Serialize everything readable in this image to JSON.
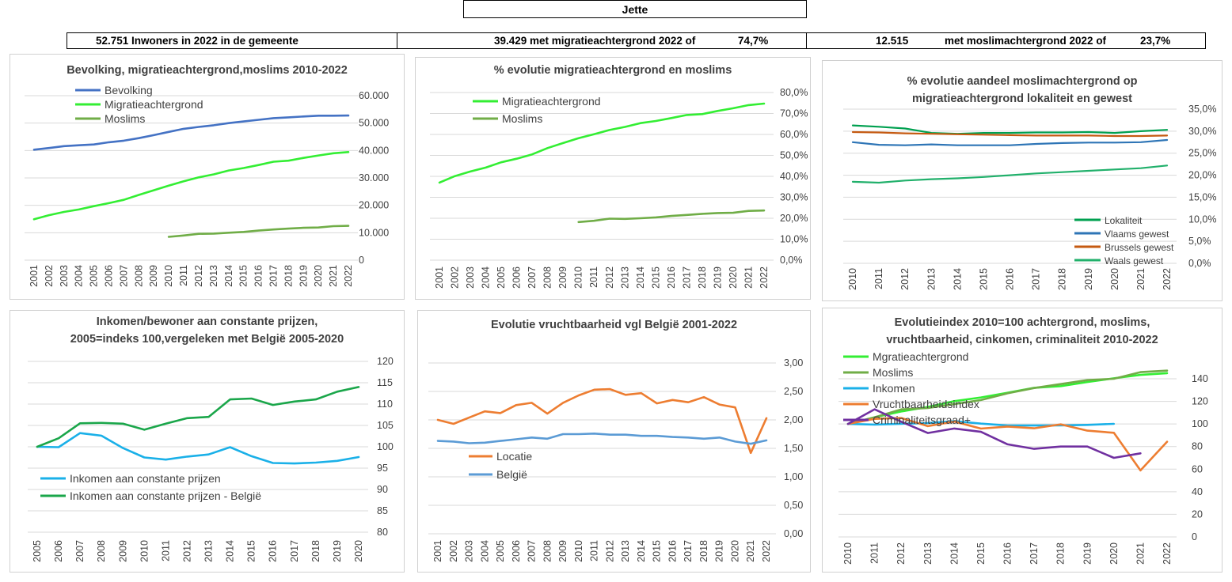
{
  "header": {
    "title": "Jette",
    "box1": "52.751 Inwoners in 2022 in de gemeente",
    "box2a": "39.429 met migratieachtergrond 2022 of",
    "box2b": "74,7%",
    "box3a": "12.515",
    "box3b": "met moslimachtergrond 2022 of",
    "box3c": "23,7%"
  },
  "chart_data": [
    {
      "type": "line",
      "title": "Bevolking, migratieachtergrond,moslims  2010-2022",
      "x": [
        "2001",
        "2002",
        "2003",
        "2004",
        "2005",
        "2006",
        "2007",
        "2008",
        "2009",
        "2010",
        "2011",
        "2012",
        "2013",
        "2014",
        "2015",
        "2016",
        "2017",
        "2018",
        "2019",
        "2020",
        "2021",
        "2022"
      ],
      "ylim": [
        0,
        60000
      ],
      "yticks": [
        "0",
        "10.000",
        "20.000",
        "30.000",
        "40.000",
        "50.000",
        "60.000"
      ],
      "legend_position": "top-left",
      "series": [
        {
          "name": "Bevolking",
          "color": "#4472c4",
          "values": [
            40300,
            40900,
            41600,
            41900,
            42200,
            43000,
            43600,
            44500,
            45600,
            46800,
            47900,
            48600,
            49200,
            50000,
            50600,
            51200,
            51800,
            52100,
            52400,
            52700,
            52700,
            52751
          ]
        },
        {
          "name": "Migratieachtergrond",
          "color": "#33ee33",
          "values": [
            14900,
            16400,
            17600,
            18500,
            19700,
            20800,
            22000,
            23800,
            25500,
            27200,
            28800,
            30200,
            31300,
            32700,
            33600,
            34700,
            35900,
            36300,
            37300,
            38200,
            39000,
            39429
          ]
        },
        {
          "name": "Moslims",
          "color": "#70ad47",
          "values": [
            null,
            null,
            null,
            null,
            null,
            null,
            null,
            null,
            null,
            8500,
            9000,
            9600,
            9700,
            10000,
            10300,
            10800,
            11200,
            11500,
            11800,
            11900,
            12400,
            12515
          ]
        }
      ]
    },
    {
      "type": "line",
      "title": "% evolutie migratieachtergrond  en moslims",
      "x": [
        "2001",
        "2002",
        "2003",
        "2004",
        "2005",
        "2006",
        "2007",
        "2008",
        "2009",
        "2010",
        "2011",
        "2012",
        "2013",
        "2014",
        "2015",
        "2016",
        "2017",
        "2018",
        "2019",
        "2020",
        "2021",
        "2022"
      ],
      "ylim": [
        0,
        80
      ],
      "yticks": [
        "0,0%",
        "10,0%",
        "20,0%",
        "30,0%",
        "40,0%",
        "50,0%",
        "60,0%",
        "70,0%",
        "80,0%"
      ],
      "legend_position": "top-left",
      "series": [
        {
          "name": "Migratieachtergrond",
          "color": "#33ee33",
          "values": [
            37.0,
            40.1,
            42.3,
            44.2,
            46.7,
            48.4,
            50.5,
            53.5,
            55.9,
            58.2,
            60.1,
            62.1,
            63.6,
            65.4,
            66.4,
            67.8,
            69.3,
            69.7,
            71.2,
            72.5,
            74.0,
            74.7
          ]
        },
        {
          "name": "Moslims",
          "color": "#70ad47",
          "values": [
            null,
            null,
            null,
            null,
            null,
            null,
            null,
            null,
            null,
            18.2,
            18.8,
            19.8,
            19.7,
            20.0,
            20.4,
            21.1,
            21.6,
            22.1,
            22.5,
            22.6,
            23.5,
            23.7
          ]
        }
      ]
    },
    {
      "type": "line",
      "title": "% evolutie aandeel moslimachtergrond op migratieachtergrond lokaliteit en gewest",
      "title_lines": [
        "% evolutie aandeel moslimachtergrond op",
        "migratieachtergrond lokaliteit en gewest"
      ],
      "x": [
        "2010",
        "2011",
        "2012",
        "2013",
        "2014",
        "2015",
        "2016",
        "2017",
        "2018",
        "2019",
        "2020",
        "2021",
        "2022"
      ],
      "ylim": [
        0,
        35
      ],
      "yticks": [
        "0,0%",
        "5,0%",
        "10,0%",
        "15,0%",
        "20,0%",
        "25,0%",
        "30,0%",
        "35,0%"
      ],
      "legend_position": "bottom-right",
      "series": [
        {
          "name": "Lokaliteit",
          "color": "#00a050",
          "values": [
            31.3,
            31.0,
            30.6,
            29.6,
            29.4,
            29.6,
            29.6,
            29.7,
            29.7,
            29.8,
            29.6,
            30.0,
            30.3
          ]
        },
        {
          "name": "Vlaams gewest",
          "color": "#2e75b6",
          "values": [
            27.5,
            26.9,
            26.8,
            27.0,
            26.8,
            26.8,
            26.8,
            27.1,
            27.3,
            27.4,
            27.4,
            27.5,
            28.0
          ]
        },
        {
          "name": "Brussels gewest",
          "color": "#c55a11",
          "values": [
            29.8,
            29.7,
            29.5,
            29.4,
            29.3,
            29.2,
            29.1,
            29.0,
            29.0,
            29.0,
            28.9,
            28.9,
            29.0
          ]
        },
        {
          "name": "Waals gewest",
          "color": "#21b06b",
          "values": [
            18.5,
            18.3,
            18.8,
            19.1,
            19.3,
            19.6,
            20.0,
            20.4,
            20.7,
            21.0,
            21.3,
            21.6,
            22.2
          ]
        }
      ]
    },
    {
      "type": "line",
      "title": "Inkomen/bewoner aan constante prijzen, 2005=indeks 100,vergeleken met België 2005-2020",
      "title_lines": [
        "Inkomen/bewoner aan constante prijzen,",
        "2005=indeks 100,vergeleken met België 2005-2020"
      ],
      "x": [
        "2005",
        "2006",
        "2007",
        "2008",
        "2009",
        "2010",
        "2011",
        "2012",
        "2013",
        "2014",
        "2015",
        "2016",
        "2017",
        "2018",
        "2019",
        "2020"
      ],
      "ylim": [
        80,
        120
      ],
      "yticks": [
        "80",
        "85",
        "90",
        "95",
        "100",
        "105",
        "110",
        "115",
        "120"
      ],
      "legend_position": "bottom-left",
      "series": [
        {
          "name": "Inkomen aan constante prijzen",
          "color": "#1ab0e8",
          "values": [
            100,
            99.9,
            103.2,
            102.6,
            99.7,
            97.5,
            97.0,
            97.7,
            98.2,
            99.9,
            97.8,
            96.2,
            96.1,
            96.3,
            96.7,
            97.6
          ]
        },
        {
          "name": "Inkomen aan constante prijzen - België",
          "color": "#1aa64a",
          "values": [
            100,
            102.0,
            105.5,
            105.6,
            105.4,
            104.0,
            105.4,
            106.7,
            107.0,
            111.1,
            111.3,
            109.8,
            110.6,
            111.1,
            112.9,
            114.0
          ]
        }
      ]
    },
    {
      "type": "line",
      "title": "Evolutie vruchtbaarheid vgl België 2001-2022",
      "x": [
        "2001",
        "2002",
        "2003",
        "2004",
        "2005",
        "2006",
        "2007",
        "2008",
        "2009",
        "2010",
        "2011",
        "2012",
        "2013",
        "2014",
        "2015",
        "2016",
        "2017",
        "2018",
        "2019",
        "2020",
        "2021",
        "2022"
      ],
      "ylim": [
        0,
        3
      ],
      "yticks": [
        "0,00",
        "0,50",
        "1,00",
        "1,50",
        "2,00",
        "2,50",
        "3,00"
      ],
      "legend_position": "bottom-left",
      "series": [
        {
          "name": "Locatie",
          "color": "#ed7d31",
          "values": [
            2.0,
            1.93,
            2.04,
            2.15,
            2.12,
            2.26,
            2.3,
            2.11,
            2.3,
            2.43,
            2.53,
            2.54,
            2.44,
            2.47,
            2.29,
            2.35,
            2.31,
            2.4,
            2.27,
            2.22,
            1.42,
            2.03
          ]
        },
        {
          "name": "België",
          "color": "#5b9bd5",
          "values": [
            1.63,
            1.62,
            1.59,
            1.6,
            1.63,
            1.66,
            1.69,
            1.67,
            1.75,
            1.75,
            1.76,
            1.74,
            1.74,
            1.72,
            1.72,
            1.7,
            1.69,
            1.67,
            1.69,
            1.62,
            1.58,
            1.64
          ]
        }
      ]
    },
    {
      "type": "line",
      "title": "Evolutieindex 2010=100 achtergrond, moslims, vruchtbaarheid, cinkomen, criminaliteit  2010-2022",
      "title_lines": [
        "Evolutieindex 2010=100 achtergrond, moslims,",
        "vruchtbaarheid, cinkomen, criminaliteit  2010-2022"
      ],
      "x": [
        "2010",
        "2011",
        "2012",
        "2013",
        "2014",
        "2015",
        "2016",
        "2017",
        "2018",
        "2019",
        "2020",
        "2021",
        "2022"
      ],
      "ylim": [
        0,
        140
      ],
      "yticks": [
        "0",
        "20",
        "40",
        "60",
        "80",
        "100",
        "120",
        "140"
      ],
      "legend_position": "top-left",
      "series": [
        {
          "name": "Mgratieachtergrond",
          "color": "#33ee33",
          "values": [
            100,
            105.9,
            111.0,
            115.1,
            120.2,
            123.5,
            127.6,
            132.0,
            133.5,
            137.1,
            140.4,
            143.4,
            145.0
          ]
        },
        {
          "name": "Moslims",
          "color": "#70ad47",
          "values": [
            100,
            105.9,
            112.9,
            114.1,
            117.6,
            121.2,
            127.1,
            131.8,
            135.3,
            138.8,
            140.0,
            145.9,
            147.2
          ]
        },
        {
          "name": "Inkomen",
          "color": "#1ab0e8",
          "values": [
            100,
            99.5,
            100.2,
            100.7,
            102.5,
            100.3,
            98.7,
            98.6,
            98.8,
            99.2,
            100.1,
            null,
            null
          ]
        },
        {
          "name": "Vruchtbaarheidsindex",
          "color": "#ed7d31",
          "values": [
            100,
            104.5,
            105.3,
            98.1,
            102.1,
            95.9,
            97.7,
            96.2,
            99.7,
            94.1,
            92.2,
            58.9,
            84.3
          ]
        },
        {
          "name": "Criminaliteitsgraad+",
          "color": "#7030a0",
          "values": [
            100,
            113,
            102,
            92,
            96,
            93,
            82,
            78,
            80,
            80,
            70,
            74,
            null
          ]
        }
      ]
    }
  ]
}
